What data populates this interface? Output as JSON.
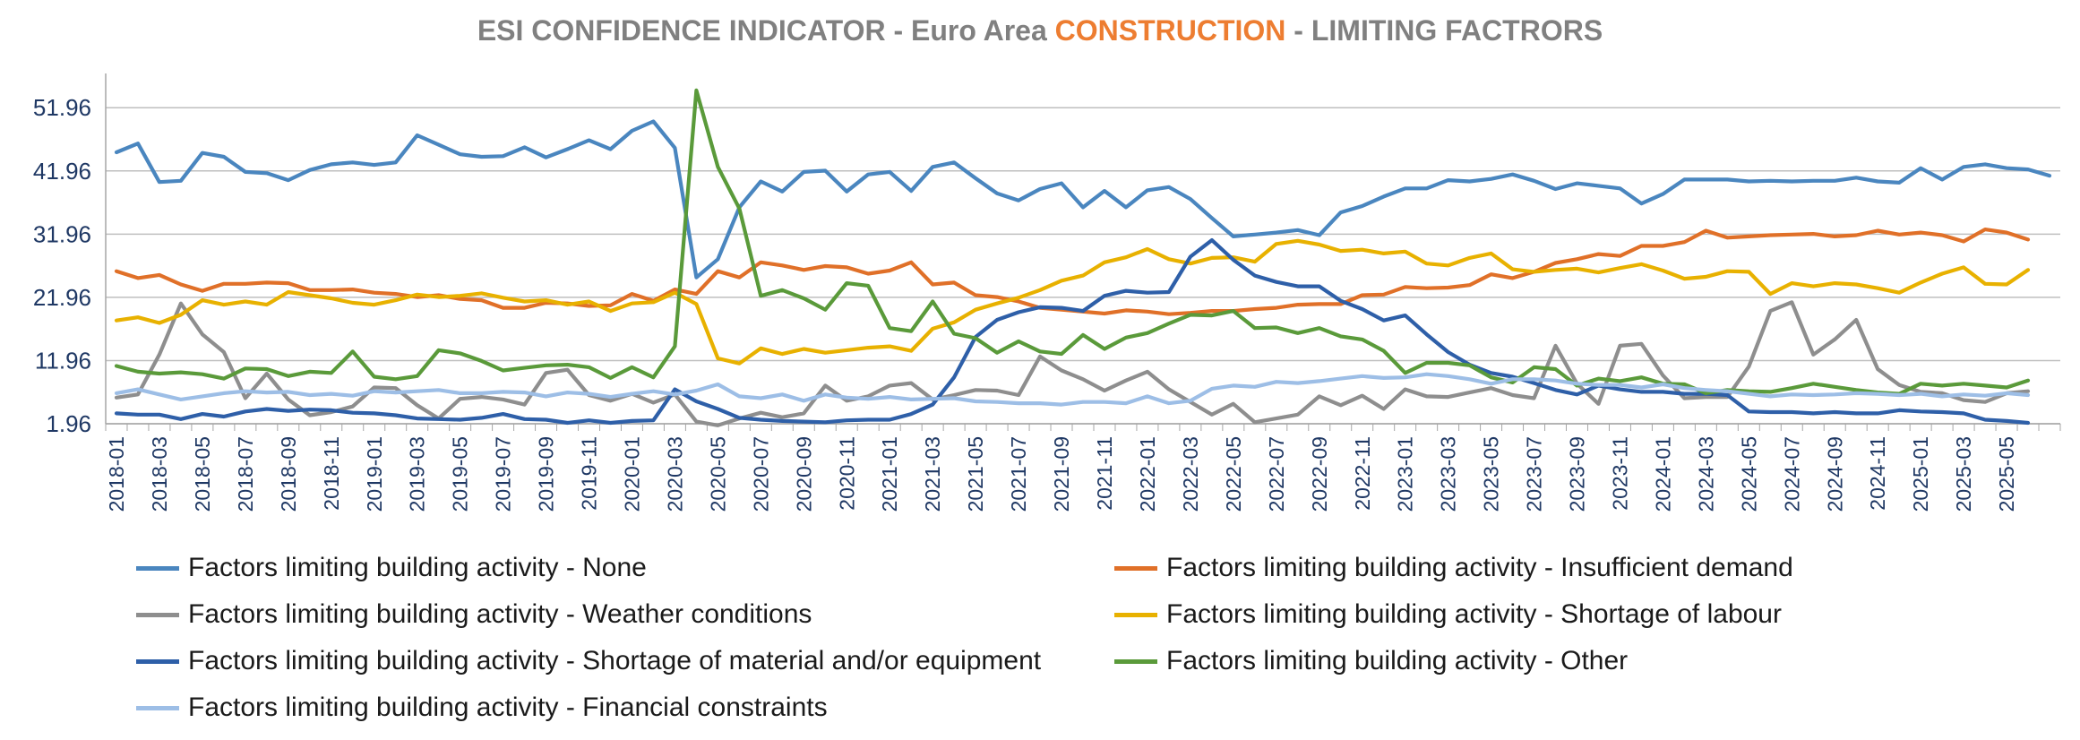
{
  "chart_data": {
    "type": "line",
    "title": {
      "prefix": "ESI CONFIDENCE INDICATOR - Euro Area ",
      "highlight": "CONSTRUCTION",
      "suffix": " - LIMITING FACTRORS"
    },
    "colors": {
      "highlight": "#ED7D31",
      "title": "#808080",
      "grid": "#bfbfbf",
      "axis_text": "#1f3864"
    },
    "ylim": [
      1.96,
      55.96
    ],
    "yticks": [
      "51.96",
      "41.96",
      "31.96",
      "21.96",
      "11.96",
      "1.96"
    ],
    "ytick_values": [
      51.96,
      41.96,
      31.96,
      21.96,
      11.96,
      1.96
    ],
    "x_labels": [
      "2018-01",
      "2018-03",
      "2018-05",
      "2018-07",
      "2018-09",
      "2018-11",
      "2019-01",
      "2019-03",
      "2019-05",
      "2019-07",
      "2019-09",
      "2019-11",
      "2020-01",
      "2020-03",
      "2020-05",
      "2020-07",
      "2020-09",
      "2020-11",
      "2021-01",
      "2021-03",
      "2021-05",
      "2021-07",
      "2021-09",
      "2021-11",
      "2022-01",
      "2022-03",
      "2022-05",
      "2022-07",
      "2022-09",
      "2022-11",
      "2023-01",
      "2023-03",
      "2023-05",
      "2023-07",
      "2023-09",
      "2023-11",
      "2024-01",
      "2024-03",
      "2024-05",
      "2024-07",
      "2024-09",
      "2024-11",
      "2025-01",
      "2025-03",
      "2025-05"
    ],
    "series": [
      {
        "name": "Factors limiting building activity - None",
        "color": "#4A86BF",
        "values": [
          44.9,
          46.3,
          40.2,
          40.4,
          44.8,
          44.2,
          41.8,
          41.6,
          40.5,
          42.1,
          43.0,
          43.3,
          42.9,
          43.3,
          47.6,
          46.1,
          44.6,
          44.2,
          44.3,
          45.7,
          44.1,
          45.4,
          46.8,
          45.4,
          48.3,
          49.8,
          45.6,
          25.1,
          28.0,
          36.2,
          40.3,
          38.7,
          41.8,
          42.0,
          38.7,
          41.4,
          41.8,
          38.8,
          42.6,
          43.3,
          40.8,
          38.4,
          37.3,
          39.1,
          40.0,
          36.2,
          38.8,
          36.2,
          38.9,
          39.4,
          37.5,
          34.5,
          31.6,
          31.9,
          32.2,
          32.6,
          31.8,
          35.4,
          36.4,
          37.9,
          39.2,
          39.2,
          40.5,
          40.3,
          40.7,
          41.4,
          40.4,
          39.1,
          40.0,
          39.6,
          39.2,
          36.8,
          38.3,
          40.6,
          40.6,
          40.6,
          40.3,
          40.4,
          40.3,
          40.4,
          40.4,
          40.9,
          40.3,
          40.1,
          42.4,
          40.6,
          42.6,
          43.0,
          42.4,
          42.2,
          41.2
        ]
      },
      {
        "name": "Factors limiting building activity - Insufficient demand",
        "color": "#E07028",
        "values": [
          26.1,
          25.0,
          25.5,
          24.0,
          23.0,
          24.1,
          24.1,
          24.3,
          24.2,
          23.1,
          23.1,
          23.2,
          22.7,
          22.5,
          22.0,
          22.3,
          21.7,
          21.5,
          20.3,
          20.3,
          21.1,
          21.0,
          20.6,
          20.7,
          22.5,
          21.4,
          23.2,
          22.5,
          26.1,
          25.1,
          27.5,
          27.0,
          26.3,
          26.9,
          26.7,
          25.7,
          26.2,
          27.5,
          24.0,
          24.3,
          22.3,
          22.0,
          21.3,
          20.3,
          20.0,
          19.7,
          19.4,
          19.9,
          19.7,
          19.3,
          19.5,
          19.8,
          19.8,
          20.1,
          20.3,
          20.8,
          20.9,
          20.9,
          22.3,
          22.4,
          23.6,
          23.4,
          23.5,
          23.9,
          25.6,
          25.0,
          26.0,
          27.4,
          28.0,
          28.8,
          28.5,
          30.1,
          30.1,
          30.7,
          32.5,
          31.4,
          31.6,
          31.8,
          31.9,
          32.0,
          31.6,
          31.8,
          32.5,
          31.9,
          32.2,
          31.8,
          30.8,
          32.7,
          32.2,
          31.1
        ]
      },
      {
        "name": "Factors limiting building activity - Weather conditions",
        "color": "#8E8E8E",
        "values": [
          6.1,
          6.6,
          12.9,
          21.0,
          16.1,
          13.3,
          6.0,
          9.9,
          5.8,
          3.3,
          3.8,
          4.7,
          7.7,
          7.6,
          4.9,
          2.8,
          5.9,
          6.2,
          5.8,
          5.0,
          10.0,
          10.5,
          6.5,
          5.6,
          6.7,
          5.3,
          6.6,
          2.3,
          1.7,
          2.8,
          3.7,
          3.0,
          3.6,
          8.0,
          5.6,
          6.3,
          8.0,
          8.4,
          5.8,
          6.5,
          7.3,
          7.2,
          6.5,
          12.6,
          10.4,
          9.0,
          7.2,
          8.8,
          10.2,
          7.4,
          5.4,
          3.4,
          5.1,
          2.2,
          2.8,
          3.4,
          6.3,
          4.9,
          6.4,
          4.3,
          7.4,
          6.3,
          6.2,
          6.9,
          7.6,
          6.5,
          6.0,
          14.3,
          8.3,
          5.1,
          14.3,
          14.6,
          9.6,
          6.0,
          6.2,
          6.2,
          11.0,
          19.8,
          21.2,
          12.9,
          15.3,
          18.4,
          10.6,
          8.1,
          7.0,
          6.8,
          5.7,
          5.4,
          6.8,
          7.1
        ]
      },
      {
        "name": "Factors limiting building activity - Shortage of labour",
        "color": "#E8B100",
        "values": [
          18.3,
          18.8,
          17.9,
          19.2,
          21.5,
          20.8,
          21.3,
          20.8,
          22.8,
          22.3,
          21.8,
          21.1,
          20.8,
          21.5,
          22.4,
          22.0,
          22.2,
          22.6,
          21.9,
          21.3,
          21.5,
          20.8,
          21.3,
          19.8,
          21.0,
          21.2,
          22.7,
          20.9,
          12.3,
          11.5,
          13.9,
          13.0,
          13.8,
          13.2,
          13.6,
          14.0,
          14.2,
          13.5,
          17.0,
          18.0,
          20.0,
          21.0,
          21.9,
          23.1,
          24.6,
          25.4,
          27.5,
          28.3,
          29.6,
          28.0,
          27.3,
          28.2,
          28.3,
          27.6,
          30.4,
          30.9,
          30.3,
          29.3,
          29.5,
          28.9,
          29.2,
          27.3,
          27.0,
          28.2,
          28.9,
          26.4,
          26.0,
          26.3,
          26.5,
          25.9,
          26.6,
          27.2,
          26.2,
          24.9,
          25.2,
          26.1,
          26.0,
          22.5,
          24.2,
          23.7,
          24.2,
          24.0,
          23.4,
          22.7,
          24.3,
          25.7,
          26.7,
          24.1,
          24.0,
          26.3
        ]
      },
      {
        "name": "Factors limiting building activity - Shortage of material and/or equipment",
        "color": "#2E5FA8",
        "values": [
          3.6,
          3.4,
          3.4,
          2.7,
          3.5,
          3.1,
          3.9,
          4.3,
          4.0,
          4.2,
          4.1,
          3.7,
          3.6,
          3.3,
          2.8,
          2.7,
          2.6,
          2.9,
          3.5,
          2.7,
          2.6,
          2.1,
          2.5,
          2.1,
          2.4,
          2.5,
          7.4,
          5.5,
          4.3,
          2.9,
          2.6,
          2.4,
          2.3,
          2.2,
          2.5,
          2.6,
          2.6,
          3.5,
          5.0,
          9.3,
          15.7,
          18.4,
          19.6,
          20.4,
          20.3,
          19.8,
          22.2,
          23.0,
          22.7,
          22.8,
          28.4,
          31.0,
          27.9,
          25.4,
          24.4,
          23.7,
          23.7,
          21.4,
          20.1,
          18.3,
          19.1,
          16.1,
          13.3,
          11.3,
          10.0,
          9.4,
          8.4,
          7.3,
          6.6,
          8.0,
          7.4,
          7.0,
          7.0,
          6.7,
          6.7,
          6.5,
          3.9,
          3.8,
          3.8,
          3.6,
          3.8,
          3.6,
          3.6,
          4.1,
          3.9,
          3.8,
          3.6,
          2.6,
          2.4,
          2.1
        ]
      },
      {
        "name": "Factors limiting building activity - Other",
        "color": "#5A9A3A",
        "values": [
          11.1,
          10.2,
          9.9,
          10.1,
          9.8,
          9.1,
          10.7,
          10.6,
          9.5,
          10.2,
          10.0,
          13.4,
          9.4,
          9.0,
          9.5,
          13.6,
          13.1,
          11.9,
          10.4,
          10.8,
          11.2,
          11.3,
          10.9,
          9.2,
          10.9,
          9.3,
          14.2,
          54.7,
          42.6,
          36.0,
          22.2,
          23.1,
          21.8,
          20.0,
          24.2,
          23.8,
          17.1,
          16.6,
          21.3,
          16.2,
          15.5,
          13.2,
          15.0,
          13.4,
          13.0,
          16.0,
          13.8,
          15.6,
          16.3,
          17.8,
          19.2,
          19.1,
          19.8,
          17.1,
          17.2,
          16.3,
          17.1,
          15.8,
          15.3,
          13.5,
          10.0,
          11.6,
          11.6,
          11.2,
          9.3,
          8.5,
          10.9,
          10.6,
          8.0,
          9.1,
          8.7,
          9.3,
          8.3,
          8.2,
          6.8,
          7.3,
          7.1,
          7.0,
          7.6,
          8.3,
          7.8,
          7.3,
          6.9,
          6.7,
          8.3,
          8.0,
          8.3,
          8.0,
          7.7,
          8.8
        ]
      },
      {
        "name": "Factors limiting building activity - Financial constraints",
        "color": "#9DBEE6",
        "values": [
          6.8,
          7.4,
          6.6,
          5.8,
          6.3,
          6.8,
          7.1,
          6.9,
          7.0,
          6.5,
          6.7,
          6.4,
          7.1,
          6.9,
          7.1,
          7.3,
          6.8,
          6.8,
          7.0,
          6.9,
          6.3,
          6.9,
          6.7,
          6.2,
          6.7,
          7.1,
          6.6,
          7.2,
          8.2,
          6.3,
          6.0,
          6.6,
          5.6,
          6.6,
          6.1,
          5.9,
          6.2,
          5.8,
          5.9,
          6.0,
          5.5,
          5.4,
          5.2,
          5.2,
          5.0,
          5.4,
          5.4,
          5.2,
          6.3,
          5.2,
          5.6,
          7.5,
          8.0,
          7.8,
          8.6,
          8.4,
          8.7,
          9.1,
          9.5,
          9.2,
          9.3,
          9.8,
          9.5,
          9.0,
          8.3,
          9.0,
          9.0,
          8.8,
          8.3,
          8.1,
          8.1,
          7.7,
          8.2,
          7.6,
          7.3,
          7.1,
          6.7,
          6.3,
          6.6,
          6.5,
          6.6,
          6.8,
          6.7,
          6.5,
          6.7,
          6.3,
          6.6,
          6.4,
          6.8,
          6.5
        ]
      }
    ],
    "legend_position": "bottom"
  }
}
